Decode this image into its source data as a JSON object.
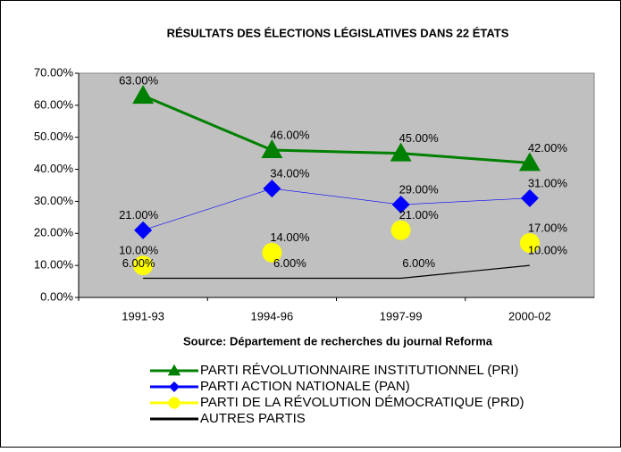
{
  "chart_data": {
    "type": "line",
    "title": "RÉSULTATS DES ÉLECTIONS LÉGISLATIVES DANS 22 ÉTATS",
    "source": "Source: Département de recherches du journal Reforma",
    "categories": [
      "1991-93",
      "1994-96",
      "1997-99",
      "2000-02"
    ],
    "ylim": [
      0,
      70
    ],
    "yticks": [
      {
        "value": 0,
        "label": "0.00%"
      },
      {
        "value": 10,
        "label": "10.00%"
      },
      {
        "value": 20,
        "label": "20.00%"
      },
      {
        "value": 30,
        "label": "30.00%"
      },
      {
        "value": 40,
        "label": "40.00%"
      },
      {
        "value": 50,
        "label": "50.00%"
      },
      {
        "value": 60,
        "label": "60.00%"
      },
      {
        "value": 70,
        "label": "70.00%"
      }
    ],
    "grid": false,
    "series": [
      {
        "name": "PARTI  RÉVOLUTIONNAIRE INSTITUTIONNEL (PRI)",
        "color": "#008000",
        "marker": "triangle",
        "values": [
          63,
          46,
          45,
          42
        ],
        "value_labels": [
          "63.00%",
          "46.00%",
          "45.00%",
          "42.00%"
        ]
      },
      {
        "name": "PARTI ACTION NATIONALE (PAN)",
        "color": "#0000ff",
        "marker": "diamond",
        "values": [
          21,
          34,
          29,
          31
        ],
        "value_labels": [
          "21.00%",
          "34.00%",
          "29.00%",
          "31.00%"
        ]
      },
      {
        "name": "PARTI DE LA RÉVOLUTION DÉMOCRATIQUE (PRD)",
        "color": "#ffff00",
        "marker": "circle",
        "values": [
          10,
          14,
          21,
          17
        ],
        "value_labels": [
          "10.00%",
          "14.00%",
          "21.00%",
          "17.00%"
        ]
      },
      {
        "name": "AUTRES PARTIS",
        "color": "#000000",
        "marker": "none",
        "values": [
          6,
          6,
          6,
          10
        ],
        "value_labels": [
          "6.00%",
          "6.00%",
          "6.00%",
          "10.00%"
        ]
      }
    ]
  }
}
